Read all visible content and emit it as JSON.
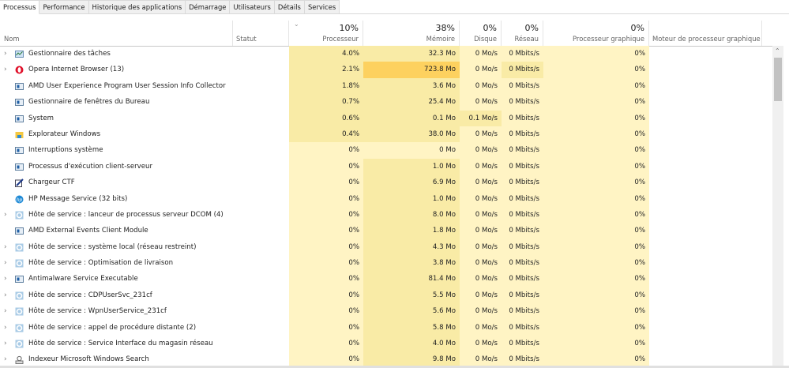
{
  "tabs": [
    "Processus",
    "Performance",
    "Historique des applications",
    "Démarrage",
    "Utilisateurs",
    "Détails",
    "Services"
  ],
  "active_tab": 0,
  "columns": {
    "name": "Nom",
    "status": "Statut",
    "cpu": {
      "pct": "10%",
      "label": "Processeur"
    },
    "memory": {
      "pct": "38%",
      "label": "Mémoire"
    },
    "disk": {
      "pct": "0%",
      "label": "Disque"
    },
    "network": {
      "pct": "0%",
      "label": "Réseau"
    },
    "gpu": {
      "pct": "0%",
      "label": "Processeur graphique"
    },
    "gpu_engine": {
      "label": "Moteur de processeur graphique"
    }
  },
  "colors": {
    "heat_low": "#fff4c4",
    "heat_mid": "#f9eba6",
    "heat_high": "#fdd15f"
  },
  "processes": [
    {
      "name": "Gestionnaire des tâches",
      "icon": "task-manager-icon",
      "expandable": true,
      "cpu": "4.0%",
      "mem": "32.3 Mo",
      "disk": "0 Mo/s",
      "net": "0 Mbits/s",
      "gpu": "0%"
    },
    {
      "name": "Opera Internet Browser (13)",
      "icon": "opera-icon",
      "expandable": true,
      "cpu": "2.1%",
      "mem": "723.8 Mo",
      "disk": "0 Mo/s",
      "net": "0 Mbits/s",
      "gpu": "0%"
    },
    {
      "name": "AMD User Experience Program User Session Info Collector",
      "icon": "app-window-icon",
      "expandable": false,
      "cpu": "1.8%",
      "mem": "3.6 Mo",
      "disk": "0 Mo/s",
      "net": "0 Mbits/s",
      "gpu": "0%"
    },
    {
      "name": "Gestionnaire de fenêtres du Bureau",
      "icon": "app-window-icon",
      "expandable": false,
      "cpu": "0.7%",
      "mem": "25.4 Mo",
      "disk": "0 Mo/s",
      "net": "0 Mbits/s",
      "gpu": "0%"
    },
    {
      "name": "System",
      "icon": "app-window-icon",
      "expandable": false,
      "cpu": "0.6%",
      "mem": "0.1 Mo",
      "disk": "0.1 Mo/s",
      "net": "0 Mbits/s",
      "gpu": "0%"
    },
    {
      "name": "Explorateur Windows",
      "icon": "folder-icon",
      "expandable": false,
      "cpu": "0.4%",
      "mem": "38.0 Mo",
      "disk": "0 Mo/s",
      "net": "0 Mbits/s",
      "gpu": "0%"
    },
    {
      "name": "Interruptions système",
      "icon": "app-window-icon",
      "expandable": false,
      "cpu": "0%",
      "mem": "0 Mo",
      "disk": "0 Mo/s",
      "net": "0 Mbits/s",
      "gpu": "0%"
    },
    {
      "name": "Processus d'exécution client-serveur",
      "icon": "app-window-icon",
      "expandable": false,
      "cpu": "0%",
      "mem": "1.0 Mo",
      "disk": "0 Mo/s",
      "net": "0 Mbits/s",
      "gpu": "0%"
    },
    {
      "name": "Chargeur CTF",
      "icon": "pen-icon",
      "expandable": false,
      "cpu": "0%",
      "mem": "6.9 Mo",
      "disk": "0 Mo/s",
      "net": "0 Mbits/s",
      "gpu": "0%"
    },
    {
      "name": "HP Message Service (32 bits)",
      "icon": "hp-icon",
      "expandable": false,
      "cpu": "0%",
      "mem": "1.0 Mo",
      "disk": "0 Mo/s",
      "net": "0 Mbits/s",
      "gpu": "0%"
    },
    {
      "name": "Hôte de service : lanceur de processus serveur DCOM (4)",
      "icon": "gear-icon",
      "expandable": true,
      "cpu": "0%",
      "mem": "8.0 Mo",
      "disk": "0 Mo/s",
      "net": "0 Mbits/s",
      "gpu": "0%"
    },
    {
      "name": "AMD External Events Client Module",
      "icon": "app-window-icon",
      "expandable": false,
      "cpu": "0%",
      "mem": "1.8 Mo",
      "disk": "0 Mo/s",
      "net": "0 Mbits/s",
      "gpu": "0%"
    },
    {
      "name": "Hôte de service : système local (réseau restreint)",
      "icon": "gear-icon",
      "expandable": true,
      "cpu": "0%",
      "mem": "4.3 Mo",
      "disk": "0 Mo/s",
      "net": "0 Mbits/s",
      "gpu": "0%"
    },
    {
      "name": "Hôte de service : Optimisation de livraison",
      "icon": "gear-icon",
      "expandable": true,
      "cpu": "0%",
      "mem": "3.8 Mo",
      "disk": "0 Mo/s",
      "net": "0 Mbits/s",
      "gpu": "0%"
    },
    {
      "name": "Antimalware Service Executable",
      "icon": "app-window-icon",
      "expandable": true,
      "cpu": "0%",
      "mem": "81.4 Mo",
      "disk": "0 Mo/s",
      "net": "0 Mbits/s",
      "gpu": "0%"
    },
    {
      "name": "Hôte de service : CDPUserSvc_231cf",
      "icon": "gear-icon",
      "expandable": true,
      "cpu": "0%",
      "mem": "5.5 Mo",
      "disk": "0 Mo/s",
      "net": "0 Mbits/s",
      "gpu": "0%"
    },
    {
      "name": "Hôte de service : WpnUserService_231cf",
      "icon": "gear-icon",
      "expandable": true,
      "cpu": "0%",
      "mem": "5.6 Mo",
      "disk": "0 Mo/s",
      "net": "0 Mbits/s",
      "gpu": "0%"
    },
    {
      "name": "Hôte de service : appel de procédure distante (2)",
      "icon": "gear-icon",
      "expandable": true,
      "cpu": "0%",
      "mem": "5.8 Mo",
      "disk": "0 Mo/s",
      "net": "0 Mbits/s",
      "gpu": "0%"
    },
    {
      "name": "Hôte de service : Service Interface du magasin réseau",
      "icon": "gear-icon",
      "expandable": true,
      "cpu": "0%",
      "mem": "4.0 Mo",
      "disk": "0 Mo/s",
      "net": "0 Mbits/s",
      "gpu": "0%"
    },
    {
      "name": "Indexeur Microsoft Windows Search",
      "icon": "search-indexer-icon",
      "expandable": true,
      "cpu": "0%",
      "mem": "9.8 Mo",
      "disk": "0 Mo/s",
      "net": "0 Mbits/s",
      "gpu": "0%"
    }
  ]
}
